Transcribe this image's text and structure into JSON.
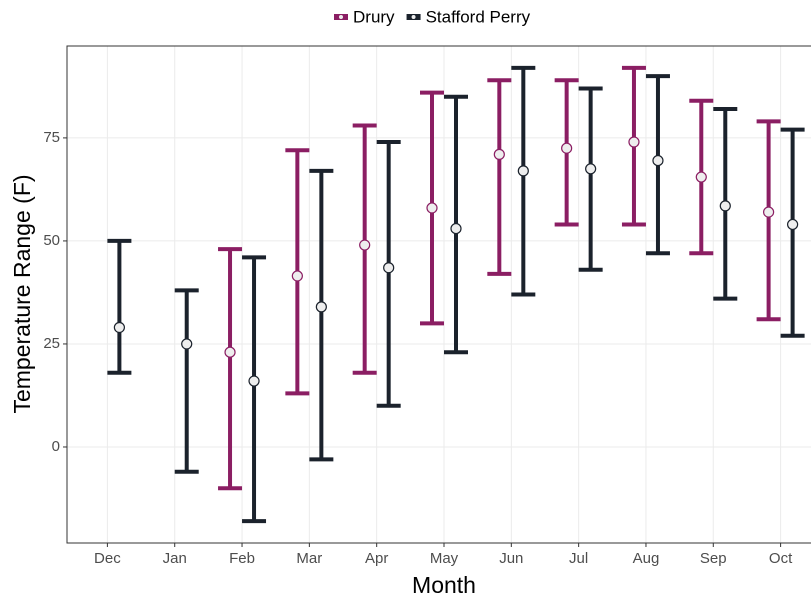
{
  "chart_data": {
    "type": "errorbar",
    "x_label": "Month",
    "y_label": "Temperature Range (F)",
    "categories": [
      "Dec",
      "Jan",
      "Feb",
      "Mar",
      "Apr",
      "May",
      "Jun",
      "Jul",
      "Aug",
      "Sep",
      "Oct"
    ],
    "series": [
      {
        "name": "Drury",
        "color": "#8b1e63",
        "low": [
          null,
          null,
          -10,
          13,
          18,
          30,
          42,
          54,
          54,
          47,
          31
        ],
        "high": [
          null,
          null,
          48,
          72,
          78,
          86,
          89,
          89,
          92,
          84,
          79
        ],
        "values": [
          null,
          null,
          23,
          41.5,
          49,
          58,
          71,
          72.5,
          74,
          65.5,
          57
        ]
      },
      {
        "name": "Stafford Perry",
        "color": "#1b222c",
        "low": [
          18,
          -6,
          -18,
          -3,
          10,
          23,
          37,
          43,
          47,
          36,
          27
        ],
        "high": [
          50,
          38,
          46,
          67,
          74,
          85,
          92,
          87,
          90,
          82,
          77
        ],
        "values": [
          29,
          25,
          16,
          34,
          43.5,
          53,
          67,
          67.5,
          69.5,
          58.5,
          54
        ]
      }
    ],
    "ylim": [
      -23.3,
      97.3
    ],
    "yticks": [
      0,
      25,
      50,
      75
    ],
    "grid": true,
    "legend": "top"
  }
}
